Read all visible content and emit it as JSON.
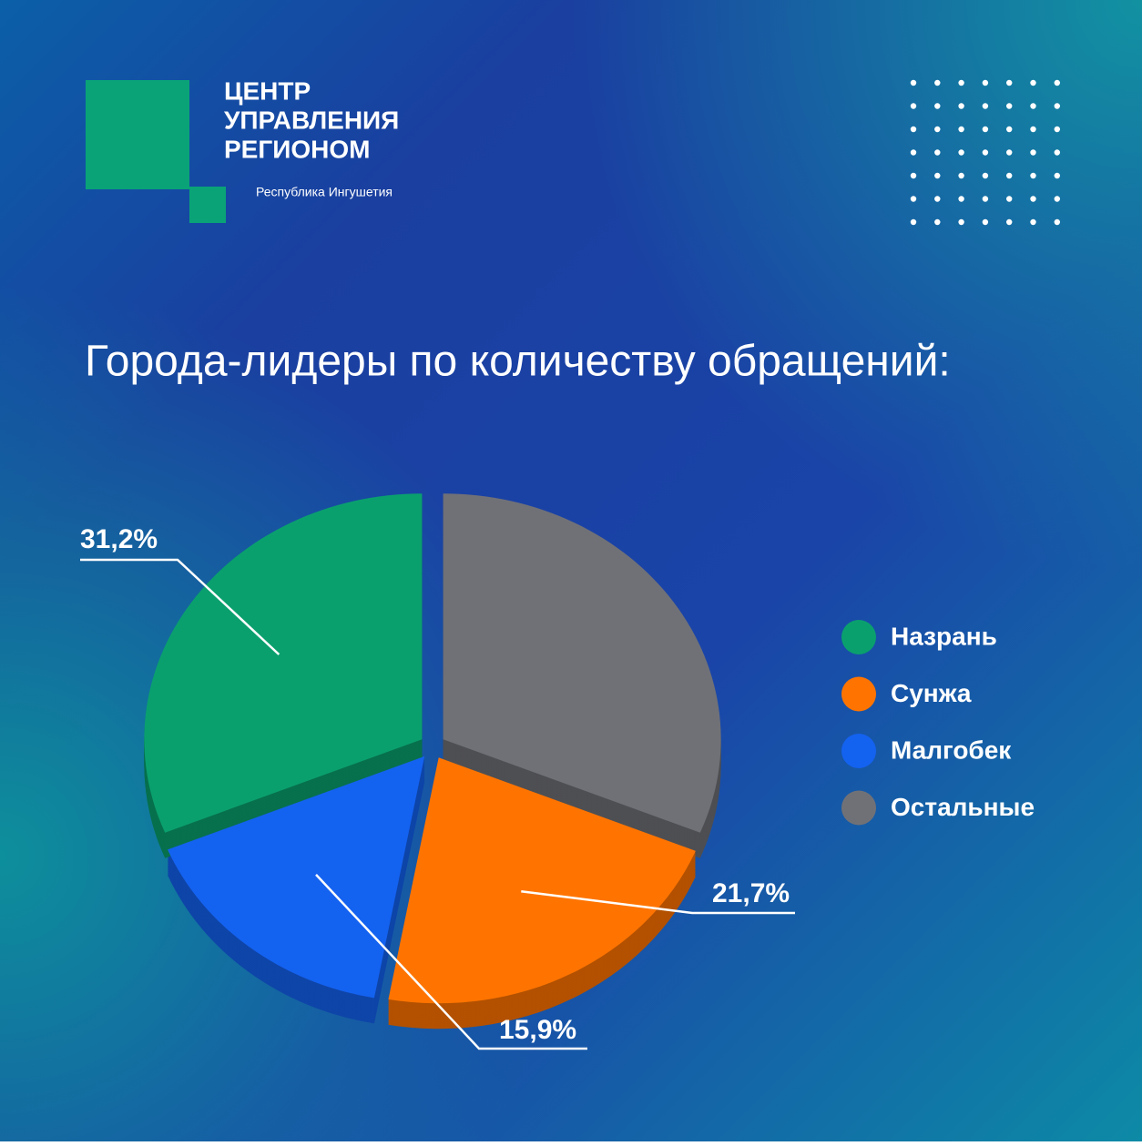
{
  "logo": {
    "lines": [
      "ЦЕНТР",
      "УПРАВЛЕНИЯ",
      "РЕГИОНОМ"
    ],
    "subtitle": "Республика Ингушетия"
  },
  "chart_data": {
    "type": "pie",
    "title": "Города-лидеры по количеству обращений:",
    "categories": [
      "Назрань",
      "Сунжа",
      "Малгобек",
      "Остальные"
    ],
    "values": [
      31.2,
      21.7,
      15.9,
      31.2
    ],
    "value_labels": [
      "31,2%",
      "21,7%",
      "15,9%",
      null
    ],
    "colors": [
      "#0aa06e",
      "#ff7400",
      "#1462f0",
      "#707177"
    ],
    "legend": "right"
  }
}
